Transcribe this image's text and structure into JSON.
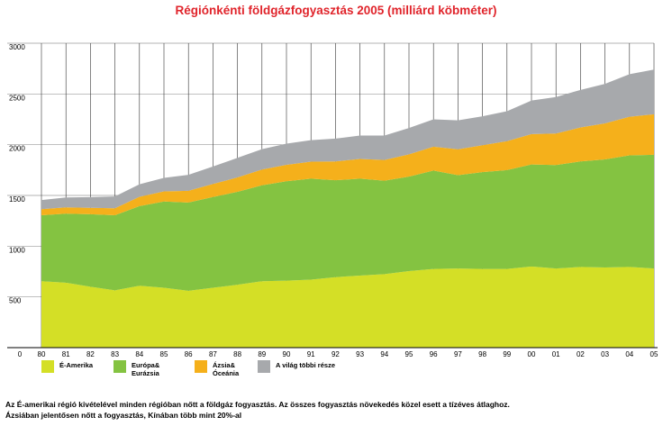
{
  "chart_data": {
    "type": "area",
    "stacked": true,
    "title": "Régiónkénti földgázfogyasztás 2005 (milliárd köbméter)",
    "x": [
      "80",
      "81",
      "82",
      "83",
      "84",
      "85",
      "86",
      "87",
      "88",
      "89",
      "90",
      "91",
      "92",
      "93",
      "94",
      "95",
      "96",
      "97",
      "98",
      "99",
      "00",
      "01",
      "02",
      "03",
      "04",
      "05"
    ],
    "x_extra_tick": "0",
    "yticks": [
      500,
      1000,
      1500,
      2000,
      2500,
      3000
    ],
    "ylim": [
      0,
      3000
    ],
    "grid": true,
    "legend_position": "bottom",
    "series": [
      {
        "name": "É-Amerika",
        "color": "#d4df26",
        "values": [
          655,
          640,
          600,
          565,
          610,
          590,
          560,
          590,
          620,
          655,
          660,
          670,
          695,
          710,
          725,
          755,
          775,
          780,
          775,
          775,
          800,
          780,
          795,
          790,
          795,
          780
        ]
      },
      {
        "name": "Európa& Eurázsia",
        "color": "#84c341",
        "values": [
          650,
          680,
          715,
          740,
          785,
          850,
          870,
          895,
          915,
          945,
          980,
          995,
          955,
          955,
          920,
          930,
          970,
          920,
          955,
          975,
          1005,
          1020,
          1040,
          1065,
          1100,
          1120
        ]
      },
      {
        "name": "Ázsia& Óceánia",
        "color": "#f5b01b",
        "values": [
          60,
          62,
          63,
          68,
          92,
          100,
          115,
          128,
          142,
          155,
          162,
          168,
          185,
          195,
          205,
          220,
          235,
          255,
          265,
          285,
          300,
          310,
          335,
          355,
          380,
          400
        ]
      },
      {
        "name": "A világ többi része",
        "color": "#a7a9ac",
        "values": [
          90,
          98,
          105,
          117,
          123,
          133,
          158,
          172,
          193,
          201,
          208,
          212,
          225,
          230,
          240,
          260,
          270,
          285,
          285,
          295,
          330,
          360,
          370,
          390,
          420,
          440
        ]
      }
    ]
  },
  "legend": {
    "items": [
      {
        "label": "É-Amerika",
        "color": "#d4df26"
      },
      {
        "label": "Európa&\nEurázsia",
        "color": "#84c341"
      },
      {
        "label": "Ázsia&\nÓceánia",
        "color": "#f5b01b"
      },
      {
        "label": "A világ többi része",
        "color": "#a7a9ac"
      }
    ]
  },
  "footnote": {
    "line1": "Az É-amerikai régió kivételével minden régióban nőtt a földgáz fogyasztás. Az összes fogyasztás növekedés közel esett a tízéves átlaghoz.",
    "line2": "Ázsiában jelentősen nőtt a fogyasztás, Kínában több mint 20%-al"
  }
}
